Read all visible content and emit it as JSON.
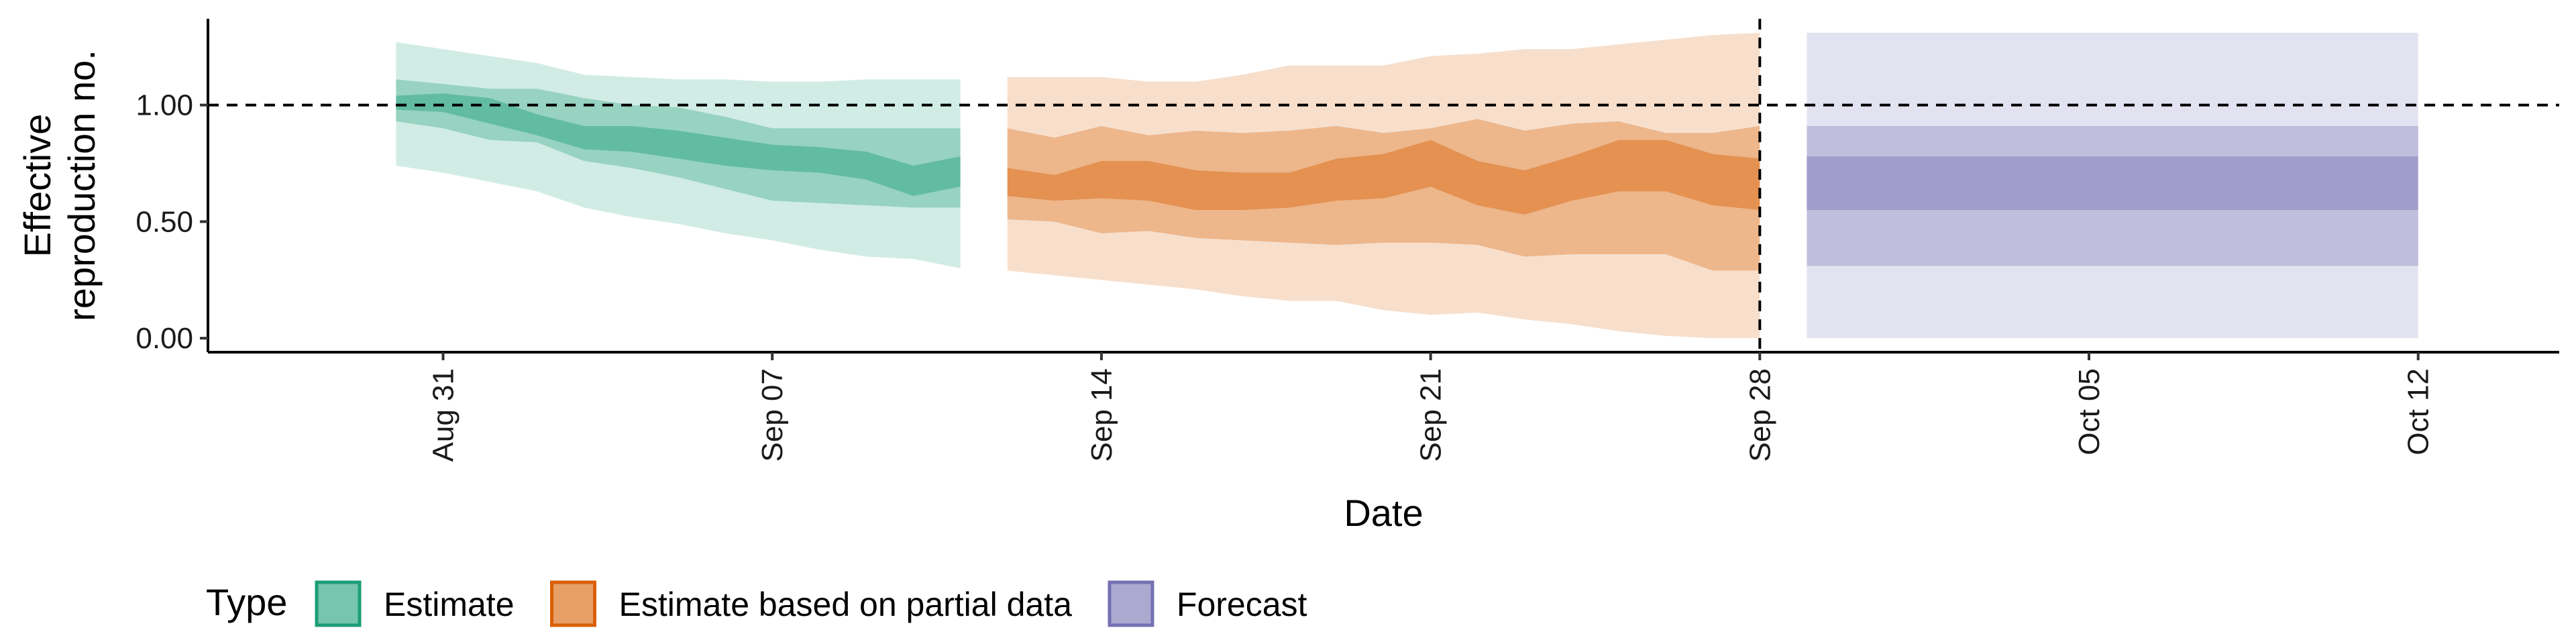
{
  "chart_data": {
    "type": "area",
    "title": "",
    "xlabel": "Date",
    "ylabel": [
      "Effective",
      "reproduction no."
    ],
    "ylim": [
      -0.06,
      1.37
    ],
    "xlim": [
      "2020-08-26",
      "2020-10-15"
    ],
    "y_ticks": [
      0.0,
      0.5,
      1.0
    ],
    "y_tick_labels": [
      "0.00",
      "0.50",
      "1.00"
    ],
    "x_ticks": [
      "2020-08-31",
      "2020-09-07",
      "2020-09-14",
      "2020-09-21",
      "2020-09-28",
      "2020-10-05",
      "2020-10-12"
    ],
    "x_tick_labels": [
      "Aug 31",
      "Sep 07",
      "Sep 14",
      "Sep 21",
      "Sep 28",
      "Oct 05",
      "Oct 12"
    ],
    "reference_hline": 1.0,
    "reference_vline": "2020-09-28",
    "grid": false,
    "legend": {
      "title": "Type",
      "position": "bottom",
      "items": [
        {
          "label": "Estimate",
          "color": "#1b9e77"
        },
        {
          "label": "Estimate based on partial data",
          "color": "#d95f02"
        },
        {
          "label": "Forecast",
          "color": "#7570b3"
        }
      ]
    },
    "series": [
      {
        "name": "Estimate",
        "color": "#1b9e77",
        "dates": [
          "2020-08-30",
          "2020-08-31",
          "2020-09-01",
          "2020-09-02",
          "2020-09-03",
          "2020-09-04",
          "2020-09-05",
          "2020-09-06",
          "2020-09-07",
          "2020-09-08",
          "2020-09-09",
          "2020-09-10",
          "2020-09-11"
        ],
        "lower90": [
          0.74,
          0.71,
          0.67,
          0.63,
          0.56,
          0.52,
          0.49,
          0.45,
          0.42,
          0.38,
          0.35,
          0.34,
          0.3
        ],
        "upper90": [
          1.27,
          1.24,
          1.21,
          1.18,
          1.13,
          1.12,
          1.11,
          1.11,
          1.1,
          1.1,
          1.11,
          1.11,
          1.11
        ],
        "lower50": [
          0.93,
          0.9,
          0.85,
          0.84,
          0.76,
          0.73,
          0.69,
          0.64,
          0.59,
          0.58,
          0.57,
          0.56,
          0.56
        ],
        "upper50": [
          1.11,
          1.09,
          1.07,
          1.07,
          1.03,
          1.0,
          0.99,
          0.95,
          0.9,
          0.9,
          0.9,
          0.9,
          0.9
        ],
        "lower20": [
          0.98,
          0.97,
          0.92,
          0.87,
          0.81,
          0.8,
          0.77,
          0.74,
          0.72,
          0.71,
          0.68,
          0.61,
          0.65
        ],
        "upper20": [
          1.04,
          1.05,
          1.03,
          0.96,
          0.91,
          0.91,
          0.89,
          0.86,
          0.83,
          0.82,
          0.8,
          0.74,
          0.78
        ]
      },
      {
        "name": "Estimate based on partial data",
        "color": "#d95f02",
        "dates": [
          "2020-09-12",
          "2020-09-13",
          "2020-09-14",
          "2020-09-15",
          "2020-09-16",
          "2020-09-17",
          "2020-09-18",
          "2020-09-19",
          "2020-09-20",
          "2020-09-21",
          "2020-09-22",
          "2020-09-23",
          "2020-09-24",
          "2020-09-25",
          "2020-09-26",
          "2020-09-27",
          "2020-09-28"
        ],
        "lower90": [
          0.29,
          0.27,
          0.25,
          0.23,
          0.21,
          0.18,
          0.16,
          0.16,
          0.12,
          0.1,
          0.11,
          0.08,
          0.06,
          0.03,
          0.01,
          0.0,
          0.0
        ],
        "upper90": [
          1.12,
          1.12,
          1.12,
          1.1,
          1.1,
          1.13,
          1.17,
          1.17,
          1.17,
          1.21,
          1.22,
          1.24,
          1.24,
          1.26,
          1.28,
          1.3,
          1.31
        ],
        "lower50": [
          0.51,
          0.5,
          0.45,
          0.46,
          0.43,
          0.42,
          0.41,
          0.4,
          0.41,
          0.41,
          0.4,
          0.35,
          0.36,
          0.36,
          0.36,
          0.29,
          0.29
        ],
        "upper50": [
          0.9,
          0.86,
          0.91,
          0.87,
          0.89,
          0.88,
          0.89,
          0.91,
          0.88,
          0.9,
          0.94,
          0.89,
          0.92,
          0.93,
          0.88,
          0.88,
          0.91
        ],
        "lower20": [
          0.61,
          0.59,
          0.6,
          0.59,
          0.55,
          0.55,
          0.56,
          0.59,
          0.6,
          0.65,
          0.57,
          0.53,
          0.59,
          0.63,
          0.63,
          0.57,
          0.55
        ],
        "upper20": [
          0.73,
          0.7,
          0.76,
          0.76,
          0.72,
          0.71,
          0.71,
          0.77,
          0.79,
          0.85,
          0.76,
          0.72,
          0.78,
          0.85,
          0.85,
          0.79,
          0.77
        ]
      },
      {
        "name": "Forecast",
        "color": "#7570b3",
        "dates": [
          "2020-09-29",
          "2020-10-12"
        ],
        "lower90": [
          0.0,
          0.0
        ],
        "upper90": [
          1.31,
          1.31
        ],
        "lower50": [
          0.31,
          0.31
        ],
        "upper50": [
          0.91,
          0.91
        ],
        "lower20": [
          0.55,
          0.55
        ],
        "upper20": [
          0.78,
          0.78
        ]
      }
    ]
  }
}
